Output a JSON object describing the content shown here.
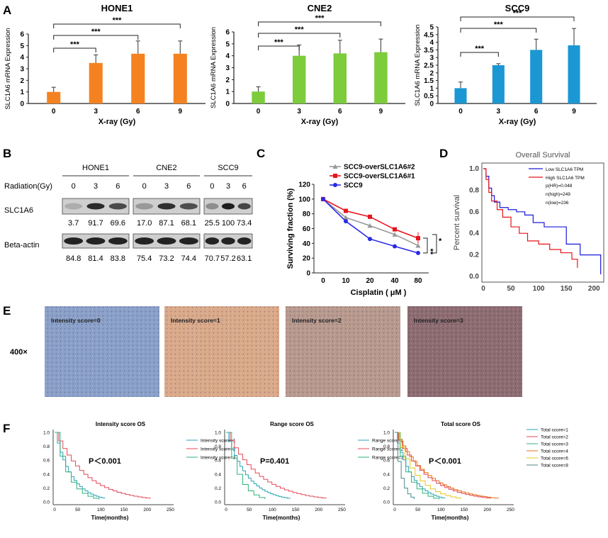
{
  "panels": {
    "A": "A",
    "B": "B",
    "C": "C",
    "D": "D",
    "E": "E",
    "F": "F"
  },
  "panelA": {
    "ylabel": "SLC1A6 mRNA Expression",
    "xlabel": "X-ray  (Gy)",
    "sig": "***",
    "charts": [
      {
        "title": "HONE1",
        "color": "#f58220"
      },
      {
        "title": "CNE2",
        "color": "#7ccc3c"
      },
      {
        "title": "SCC9",
        "color": "#1b97d4"
      }
    ]
  },
  "chart_data": [
    {
      "type": "bar",
      "title": "HONE1",
      "categories": [
        "0",
        "3",
        "6",
        "9"
      ],
      "values": [
        1.0,
        3.5,
        4.3,
        4.3
      ],
      "errors": [
        0.4,
        0.7,
        1.1,
        1.1
      ],
      "ylim": [
        0,
        6
      ],
      "yticks": [
        "0",
        "1",
        "2",
        "3",
        "4",
        "5",
        "6"
      ],
      "xlabel": "X-ray  (Gy)",
      "ylabel": "SLC1A6 mRNA Expression"
    },
    {
      "type": "bar",
      "title": "CNE2",
      "categories": [
        "0",
        "3",
        "6",
        "9"
      ],
      "values": [
        1.0,
        4.0,
        4.2,
        4.3
      ],
      "errors": [
        0.4,
        0.9,
        1.1,
        1.1
      ],
      "ylim": [
        0,
        6
      ],
      "yticks": [
        "0",
        "1",
        "2",
        "3",
        "4",
        "5",
        "6"
      ],
      "xlabel": "X-ray  (Gy)",
      "ylabel": "SLC1A6 mRNA Expression"
    },
    {
      "type": "bar",
      "title": "SCC9",
      "categories": [
        "0",
        "3",
        "6",
        "9"
      ],
      "values": [
        1.0,
        2.5,
        3.5,
        3.8
      ],
      "errors": [
        0.4,
        0.1,
        0.7,
        1.1
      ],
      "ylim": [
        0,
        5
      ],
      "yticks": [
        "0",
        "0.5",
        "1",
        "1.5",
        "2",
        "2.5",
        "3",
        "3.5",
        "4",
        "4.5",
        "5"
      ],
      "xlabel": "X-ray  (Gy)",
      "ylabel": "SLC1A6 mRNA Expression"
    },
    {
      "type": "line",
      "title": "",
      "xlabel": "Cisplatin ( μM )",
      "ylabel": "Surviving fraction (%)",
      "x": [
        "0",
        "10",
        "20",
        "40",
        "80"
      ],
      "ylim": [
        0,
        120
      ],
      "yticks": [
        "0",
        "20",
        "40",
        "60",
        "80",
        "100",
        "120"
      ],
      "series": [
        {
          "name": "SCC9-overSLC1A6#2",
          "color": "#999999",
          "values": [
            100,
            75,
            64,
            52,
            37
          ]
        },
        {
          "name": "SCC9-overSLC1A6#1",
          "color": "#e8141c",
          "values": [
            100,
            84,
            76,
            59,
            47
          ]
        },
        {
          "name": "SCC9",
          "color": "#2a2ae6",
          "values": [
            100,
            70,
            46,
            36,
            27
          ]
        }
      ],
      "annotations": [
        "**",
        "*"
      ]
    },
    {
      "type": "line",
      "title": "Overall Survival",
      "xlabel": "",
      "ylabel": "Percent survival",
      "xticks": [
        "0",
        "50",
        "100",
        "150",
        "200"
      ],
      "yticks": [
        "0.0",
        "0.2",
        "0.4",
        "0.6",
        "0.8",
        "1.0"
      ],
      "series": [
        {
          "name": "Low SLC1A6 TPM",
          "color": "#1a1ad8"
        },
        {
          "name": "High SLC1A6 TPM",
          "color": "#e8141c"
        }
      ],
      "stats": [
        "p(HR)=0.048",
        "n(high)=249",
        "n(low)=236"
      ]
    }
  ],
  "panelB": {
    "header": "Radiation(Gy)",
    "cell_lines": [
      "HONE1",
      "CNE2",
      "SCC9"
    ],
    "doses": [
      "0",
      "3",
      "6"
    ],
    "rows": [
      {
        "label": "SLC1A6",
        "values": [
          "3.7",
          "91.7",
          "69.6",
          "17.0",
          "87.1",
          "68.1",
          "25.5",
          "100",
          "73.4"
        ]
      },
      {
        "label": "Beta-actin",
        "values": [
          "84.8",
          "81.4",
          "83.8",
          "75.4",
          "73.2",
          "74.4",
          "70.7",
          "57.2",
          "63.1"
        ]
      }
    ]
  },
  "panelC": {
    "ylabel": "Surviving fraction (%)",
    "xlabel": "Cisplatin ( μM )",
    "sig1": "**",
    "sig2": "*"
  },
  "panelD": {
    "title": "Overall Survival",
    "ylabel": "Percent survival",
    "legend": [
      "Low SLC1A6 TPM",
      "High SLC1A6 TPM"
    ],
    "stats": [
      "p(HR)=0.048",
      "n(high)=249",
      "n(low)=236"
    ]
  },
  "panelE": {
    "magnification": "400×",
    "images": [
      {
        "label": "Intensity score=0",
        "color": "#8aa0c8"
      },
      {
        "label": "Intensity  score=1",
        "color": "#d9a98a"
      },
      {
        "label": "Intensity  score=2",
        "color": "#b8998e"
      },
      {
        "label": "Intensity  score=3",
        "color": "#8d6c72"
      }
    ]
  },
  "panelF": {
    "xlabel": "Time(months)",
    "xticks": [
      "0",
      "50",
      "100",
      "150",
      "200",
      "250"
    ],
    "yticks": [
      "0.0",
      "0.2",
      "0.4",
      "0.6",
      "0.8",
      "1.0"
    ],
    "plots": [
      {
        "title": "Intensity  score  OS",
        "pvalue": "P＜0.001",
        "legend": [
          "Intensity  score=1",
          "Intensity  score=2",
          "Intensity  score=3"
        ]
      },
      {
        "title": "Range  score  OS",
        "pvalue": "P=0.401",
        "legend": [
          "Range  score=1",
          "Range  score=2",
          "Range  score=3"
        ]
      },
      {
        "title": "Total  score  OS",
        "pvalue": "P＜0.001",
        "legend": [
          "Total  score=1",
          "Total  score=2",
          "Total  score=3",
          "Total  score=4",
          "Total  score=6",
          "Total  score=8"
        ]
      }
    ]
  }
}
